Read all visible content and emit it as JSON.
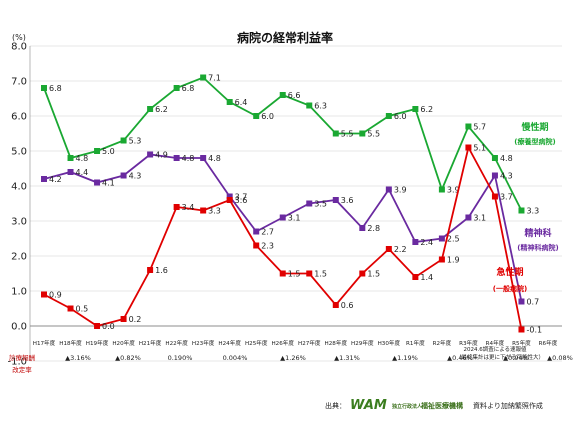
{
  "chart_data": {
    "type": "line",
    "title": "病院の経常利益率",
    "y_unit": "(%)",
    "ylim": [
      -1,
      8
    ],
    "yticks": [
      "8.0",
      "7.0",
      "6.0",
      "5.0",
      "4.0",
      "3.0",
      "2.0",
      "1.0",
      "0.0",
      "-1.0"
    ],
    "grid": true,
    "categories": [
      "H17年度",
      "H18年度",
      "H19年度",
      "H20年度",
      "H21年度",
      "H22年度",
      "H23年度",
      "H24年度",
      "H25年度",
      "H26年度",
      "H27年度",
      "H28年度",
      "H29年度",
      "H30年度",
      "R1年度",
      "R2年度",
      "R3年度",
      "R4年度",
      "R5年度",
      "R6年度"
    ],
    "series": [
      {
        "name": "慢性期",
        "sub": "(療養型病院)",
        "color": "#1aa832",
        "values": [
          6.8,
          4.8,
          5.0,
          5.3,
          6.2,
          6.8,
          7.1,
          6.4,
          6.0,
          6.6,
          6.3,
          5.5,
          5.5,
          6.0,
          6.2,
          3.9,
          5.7,
          4.8,
          3.3,
          null
        ],
        "labels": [
          "6.8",
          "4.8",
          "5.0",
          "5.3",
          "6.2",
          "6.8",
          "7.1",
          "6.4",
          "6.0",
          "6.6",
          "6.3",
          "5.5",
          "5.5",
          "6.0",
          "6.2",
          "3.9",
          "5.7",
          "4.8",
          "3.3",
          ""
        ]
      },
      {
        "name": "精神科",
        "sub": "(精神科病院)",
        "color": "#6a2aa0",
        "values": [
          4.2,
          4.4,
          4.1,
          4.3,
          4.9,
          4.8,
          4.8,
          3.7,
          2.7,
          3.1,
          3.5,
          3.6,
          2.8,
          3.9,
          2.4,
          2.5,
          3.1,
          4.3,
          0.7,
          null
        ],
        "labels": [
          "4.2",
          "4.4",
          "4.1",
          "4.3",
          "4.9",
          "4.8",
          "4.8",
          "3.7",
          "2.7",
          "3.1",
          "3.5",
          "3.6",
          "2.8",
          "3.9",
          "2.4",
          "2.5",
          "3.1",
          "4.3",
          "0.7",
          ""
        ]
      },
      {
        "name": "急性期",
        "sub": "(一般病院)",
        "color": "#e00000",
        "values": [
          0.9,
          0.5,
          0.0,
          0.2,
          1.6,
          3.4,
          3.3,
          3.6,
          2.3,
          1.5,
          1.5,
          0.6,
          1.5,
          2.2,
          1.4,
          1.9,
          5.1,
          3.7,
          -0.1,
          null
        ],
        "labels": [
          "0.9",
          "0.5",
          "0.0",
          "0.2",
          "1.6",
          "3.4",
          "3.3",
          "3.6",
          "2.3",
          "1.5",
          "1.5",
          "0.6",
          "1.5",
          "2.2",
          "1.4",
          "1.9",
          "5.1",
          "3.7",
          "-0.1",
          ""
        ]
      }
    ],
    "note_lines": [
      "2024.6調査による速報値",
      "（最終集計は更に下がる可能性大）"
    ],
    "revision_header": [
      "診療報酬",
      "改定率"
    ],
    "revision_rates": [
      "▲3.16%",
      "▲0.82%",
      "0.190%",
      "0.004%",
      "▲1.26%",
      "▲1.31%",
      "▲1.19%",
      "▲0.46%",
      "▲0.94%",
      "▲0.08%"
    ],
    "source_prefix": "出典：",
    "source_logo": "WAM",
    "source_org_small": "独立行政法人",
    "source_org": "福祉医療機構",
    "source_suffix": "資料より加納繁照作成"
  }
}
